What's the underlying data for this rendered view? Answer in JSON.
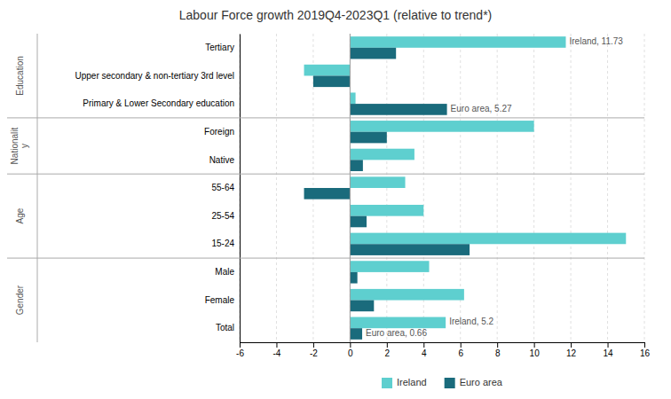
{
  "chart_data": {
    "type": "bar",
    "orientation": "horizontal",
    "title": "Labour Force growth 2019Q4-2023Q1 (relative to trend*)",
    "categories": [
      "Tertiary",
      "Upper secondary & non-tertiary 3rd level",
      "Primary & Lower Secondary education",
      "Foreign",
      "Native",
      "55-64",
      "25-54",
      "15-24",
      "Male",
      "Female",
      "Total"
    ],
    "series": [
      {
        "name": "Ireland",
        "color": "#5ecfcf",
        "values": [
          11.73,
          -2.5,
          0.3,
          10.0,
          3.5,
          3.0,
          4.0,
          15.0,
          4.3,
          6.2,
          5.2
        ]
      },
      {
        "name": "Euro area",
        "color": "#1a6b7c",
        "values": [
          2.5,
          -2.0,
          5.27,
          2.0,
          0.7,
          -2.5,
          0.9,
          6.5,
          0.4,
          1.3,
          0.66
        ]
      }
    ],
    "groups": [
      {
        "label": "Education",
        "categories": [
          "Tertiary",
          "Upper secondary & non-tertiary 3rd level",
          "Primary & Lower Secondary education"
        ]
      },
      {
        "label": "Nationalit\ny",
        "categories": [
          "Foreign",
          "Native"
        ]
      },
      {
        "label": "Age",
        "categories": [
          "55-64",
          "25-54",
          "15-24"
        ]
      },
      {
        "label": "Gender",
        "categories": [
          "Male",
          "Female",
          "Total"
        ]
      }
    ],
    "annotations": [
      {
        "text": "Ireland, 11.73",
        "series": "Ireland",
        "category": "Tertiary"
      },
      {
        "text": "Euro area, 5.27",
        "series": "Euro area",
        "category": "Primary & Lower Secondary education"
      },
      {
        "text": "Ireland, 5.2",
        "series": "Ireland",
        "category": "Total"
      },
      {
        "text": "Euro area, 0.66",
        "series": "Euro area",
        "category": "Total"
      }
    ],
    "xlim": [
      -6,
      16
    ],
    "xticks": [
      -6,
      -4,
      -2,
      0,
      2,
      4,
      6,
      8,
      10,
      12,
      14,
      16
    ],
    "grid": true,
    "legend": "bottom"
  }
}
